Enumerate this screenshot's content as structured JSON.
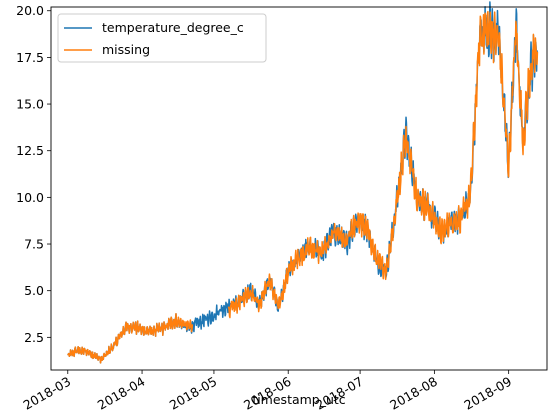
{
  "chart_data": {
    "type": "line",
    "xlabel": "timestamp_utc",
    "ylabel": "",
    "xlim": [
      "2018-02-22",
      "2018-09-17"
    ],
    "ylim": [
      0.75,
      20.2
    ],
    "x_ticks": [
      "2018-03",
      "2018-04",
      "2018-05",
      "2018-06",
      "2018-07",
      "2018-08",
      "2018-09"
    ],
    "x_tick_dates": [
      "2018-03-01",
      "2018-04-01",
      "2018-05-01",
      "2018-06-01",
      "2018-07-01",
      "2018-08-01",
      "2018-09-01"
    ],
    "y_ticks": [
      "2.5",
      "5.0",
      "7.5",
      "10.0",
      "12.5",
      "15.0",
      "17.5",
      "20.0"
    ],
    "y_tick_values": [
      2.5,
      5.0,
      7.5,
      10.0,
      12.5,
      15.0,
      17.5,
      20.0
    ],
    "legend_position": "upper-left",
    "grid": false,
    "series": [
      {
        "name": "temperature_degree_c",
        "color": "#1f77b4",
        "x": [
          "2018-03-01",
          "2018-03-05",
          "2018-03-10",
          "2018-03-15",
          "2018-03-20",
          "2018-03-25",
          "2018-03-28",
          "2018-04-01",
          "2018-04-05",
          "2018-04-10",
          "2018-04-15",
          "2018-04-20",
          "2018-04-25",
          "2018-04-30",
          "2018-05-04",
          "2018-05-08",
          "2018-05-12",
          "2018-05-16",
          "2018-05-20",
          "2018-05-24",
          "2018-05-28",
          "2018-06-01",
          "2018-06-05",
          "2018-06-10",
          "2018-06-15",
          "2018-06-20",
          "2018-06-25",
          "2018-06-30",
          "2018-07-04",
          "2018-07-08",
          "2018-07-12",
          "2018-07-15",
          "2018-07-20",
          "2018-07-25",
          "2018-07-30",
          "2018-08-04",
          "2018-08-08",
          "2018-08-12",
          "2018-08-16",
          "2018-08-20",
          "2018-08-24",
          "2018-08-28",
          "2018-09-01",
          "2018-09-04",
          "2018-09-07",
          "2018-09-10",
          "2018-09-13"
        ],
        "values": [
          1.5,
          1.8,
          1.7,
          1.3,
          2.0,
          3.0,
          3.1,
          2.9,
          2.8,
          3.0,
          3.4,
          3.0,
          3.3,
          3.6,
          4.0,
          4.2,
          4.4,
          5.0,
          4.3,
          5.6,
          4.1,
          6.0,
          6.8,
          7.3,
          7.0,
          8.2,
          7.5,
          8.8,
          8.3,
          6.6,
          6.1,
          8.5,
          13.3,
          10.0,
          9.3,
          8.1,
          8.7,
          8.9,
          10.0,
          18.8,
          19.0,
          18.4,
          11.6,
          19.1,
          13.0,
          16.9,
          17.8
        ]
      },
      {
        "name": "missing",
        "color": "#ff7f0e",
        "x": [
          "2018-03-01",
          "2018-03-05",
          "2018-03-10",
          "2018-03-15",
          "2018-03-20",
          "2018-03-25",
          "2018-03-28",
          "2018-04-01",
          "2018-04-05",
          "2018-04-10",
          "2018-04-15",
          "2018-04-20",
          "2018-04-22",
          "2018-05-07",
          "2018-05-12",
          "2018-05-16",
          "2018-05-20",
          "2018-05-24",
          "2018-05-28",
          "2018-06-01",
          "2018-06-05",
          "2018-06-10",
          "2018-06-15",
          "2018-06-20",
          "2018-06-25",
          "2018-06-30",
          "2018-07-04",
          "2018-07-08",
          "2018-07-12",
          "2018-07-15",
          "2018-07-20",
          "2018-07-25",
          "2018-07-30",
          "2018-08-04",
          "2018-08-08",
          "2018-08-12",
          "2018-08-16",
          "2018-08-20",
          "2018-08-24",
          "2018-08-28",
          "2018-09-01",
          "2018-09-04",
          "2018-09-07",
          "2018-09-10",
          "2018-09-13"
        ],
        "values": [
          1.5,
          1.8,
          1.7,
          1.3,
          2.0,
          3.0,
          3.1,
          2.9,
          2.8,
          3.0,
          3.4,
          3.1,
          3.2,
          3.9,
          4.4,
          5.0,
          4.3,
          5.6,
          4.1,
          6.0,
          6.8,
          7.3,
          7.0,
          8.2,
          7.5,
          8.8,
          8.3,
          6.6,
          6.1,
          8.5,
          13.3,
          10.0,
          9.3,
          8.1,
          8.7,
          8.9,
          10.0,
          18.8,
          19.0,
          18.4,
          11.6,
          19.1,
          13.0,
          16.9,
          17.8
        ]
      }
    ]
  }
}
